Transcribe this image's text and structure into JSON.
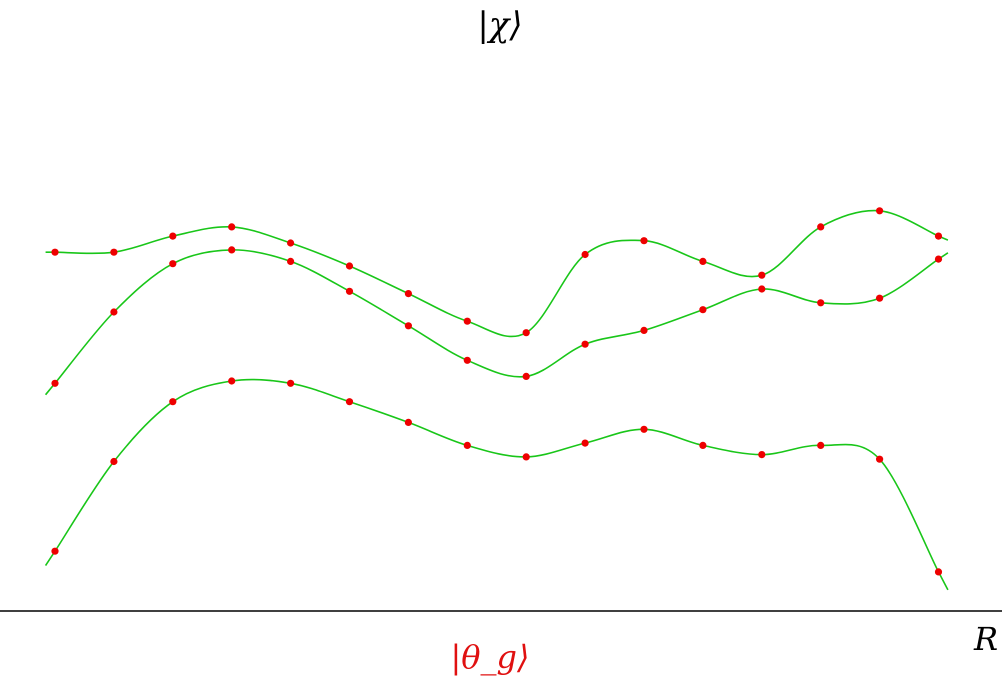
{
  "labels": {
    "top": "|χ⟩",
    "bottom": "|θ_g⟩",
    "axis": "R"
  },
  "colors": {
    "curve": "#19c619",
    "point": "#ee0000",
    "axis": "#000000",
    "bottom_label": "#e01010",
    "text": "#000000"
  },
  "chart_data": {
    "type": "line",
    "title": "",
    "xlabel": "R",
    "ylabel": "",
    "grid": false,
    "x": [
      0,
      1,
      2,
      3,
      4,
      5,
      6,
      7,
      8,
      9,
      10,
      11,
      12,
      13,
      14,
      15,
      16
    ],
    "series": [
      {
        "values": [
          7.8,
          7.8,
          8.15,
          8.35,
          8.0,
          7.5,
          6.9,
          6.3,
          6.05,
          7.75,
          8.05,
          7.6,
          7.3,
          8.35,
          8.7,
          8.15,
          null
        ]
      },
      {
        "values": [
          4.95,
          6.5,
          7.55,
          7.85,
          7.6,
          6.95,
          6.2,
          5.45,
          5.1,
          5.8,
          6.1,
          6.55,
          7.0,
          6.7,
          6.8,
          7.65,
          null
        ]
      },
      {
        "values": [
          1.3,
          3.25,
          4.55,
          5.0,
          4.95,
          4.55,
          4.1,
          3.6,
          3.35,
          3.65,
          3.95,
          3.6,
          3.4,
          3.6,
          3.3,
          0.85,
          null
        ]
      }
    ]
  }
}
